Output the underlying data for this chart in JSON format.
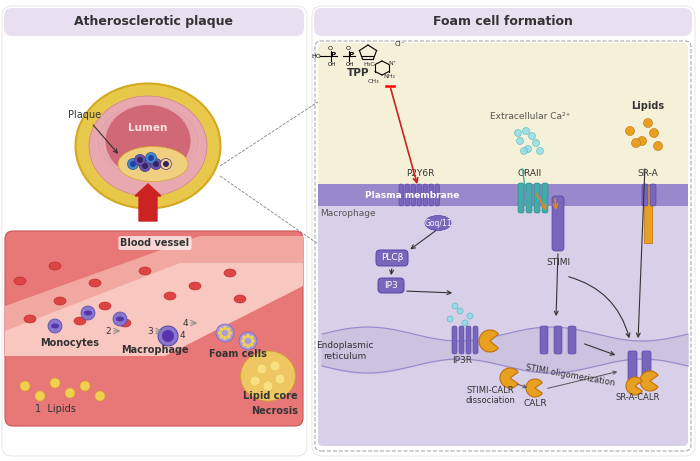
{
  "bg_color": "#ffffff",
  "left_panel": {
    "title": "Atherosclerotic plaque",
    "title_bg": "#e8e0f0",
    "plaque_label": "Plaque",
    "lumen_label": "Lumen",
    "blood_vessel_label": "Blood vessel",
    "monocytes_label": "Monocytes",
    "foam_cells_label": "Foam cells",
    "macrophage_label": "Macrophage",
    "lipids_label": "1  Lipids",
    "lipid_core_label": "Lipid core",
    "necrosis_label": "Necrosis",
    "arrow_color": "#cc2222"
  },
  "right_panel": {
    "title": "Foam cell formation",
    "title_bg": "#e8e0f0",
    "tpp_label": "TPP",
    "p2y6r_label": "P2Y6R",
    "oraii_label": "ORAII",
    "sr_a_label": "SR-A",
    "plasma_membrane_label": "Plasma membrane",
    "macrophage_label": "Macrophage",
    "goq11_label": "Goq/11",
    "plcb_label": "PLCβ",
    "ip3_label": "IP3",
    "ip3r_label": "IP3R",
    "stimi_label": "STIMI",
    "stimi_oligo_label": "STIMI oligomerization",
    "calr_label": "CALR",
    "stimi_calr_label": "STIMI-CALR\ndissociation",
    "sr_a_calr_label": "SR-A-CALR",
    "er_label": "Endoplasmic\nreticulum",
    "extracellular_ca_label": "Extracellular Ca²⁺",
    "lipids_label": "Lipids",
    "purple": "#6655aa",
    "teal": "#44aaaa",
    "orange": "#dd9933"
  }
}
